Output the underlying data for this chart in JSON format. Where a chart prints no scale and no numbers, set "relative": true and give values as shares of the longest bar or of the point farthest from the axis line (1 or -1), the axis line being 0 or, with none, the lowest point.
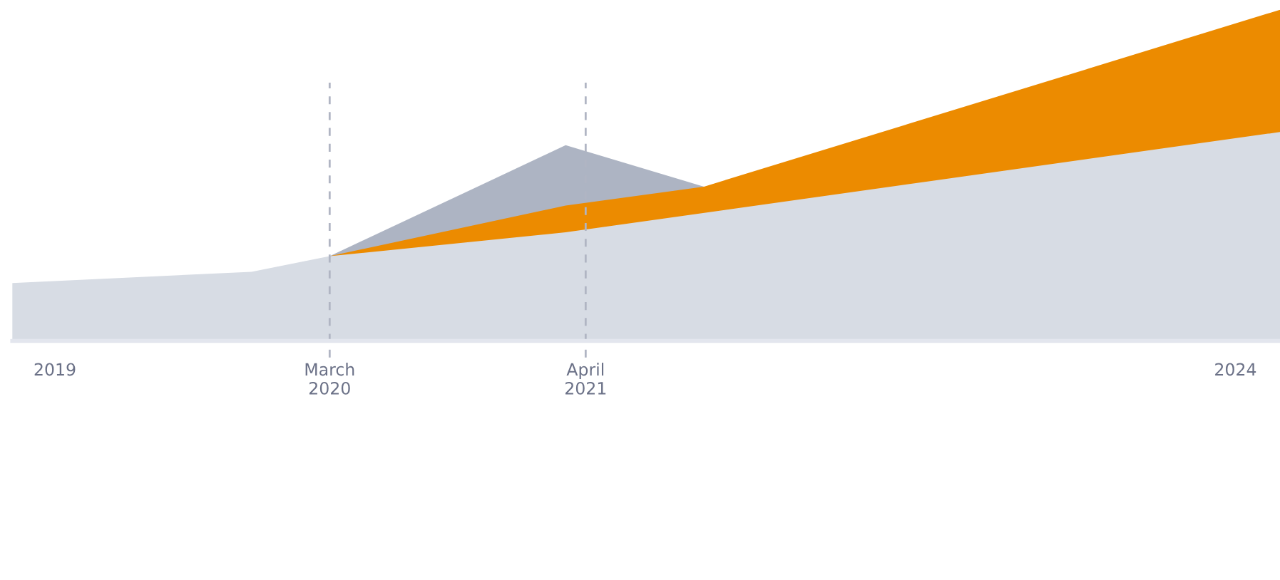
{
  "chart_data": {
    "type": "area",
    "relative": true,
    "tick_labels": "x",
    "grid": false,
    "xlim": [
      "2018-10-27",
      "2024-03-10"
    ],
    "xticks": [
      {
        "value": "2019-01-01",
        "label": "2019"
      },
      {
        "value": "2020-03-01",
        "label": "March\n2020"
      },
      {
        "value": "2021-04-01",
        "label": "April\n2021"
      },
      {
        "value": "2024-01-01",
        "label": "2024"
      }
    ],
    "series": [
      {
        "color": "#adb4c3",
        "x": [
          "2020-03-01",
          "2021-03-01",
          "2021-10-01"
        ],
        "values": [
          0.256,
          0.591,
          0.466
        ]
      },
      {
        "color": "#ec8b00",
        "x": [
          "2020-03-01",
          "2021-03-01",
          "2021-10-01",
          "2024-03-10"
        ],
        "values": [
          0.256,
          0.409,
          0.466,
          1
        ]
      },
      {
        "color": "#d7dce4",
        "x": [
          "2018-10-27",
          "2019-11-01",
          "2020-03-01",
          "2021-03-01",
          "2024-03-10"
        ],
        "values": [
          0.175,
          0.209,
          0.256,
          0.328,
          0.631
        ]
      }
    ],
    "ref_lines": [
      {
        "axis": "x",
        "value": "2020-03-01",
        "color": "#b0b5c3",
        "line_style": "dashed"
      },
      {
        "axis": "x",
        "value": "2021-04-01",
        "color": "#b0b5c3",
        "line_style": "dashed"
      }
    ]
  }
}
